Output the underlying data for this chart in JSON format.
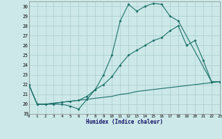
{
  "xlabel": "Humidex (Indice chaleur)",
  "bg_color": "#cce8e8",
  "grid_color": "#aacccc",
  "line_color": "#1a7068",
  "xlim": [
    0,
    23
  ],
  "ylim": [
    19,
    30.5
  ],
  "yticks": [
    19,
    20,
    21,
    22,
    23,
    24,
    25,
    26,
    27,
    28,
    29,
    30
  ],
  "xticks": [
    0,
    1,
    2,
    3,
    4,
    5,
    6,
    7,
    8,
    9,
    10,
    11,
    12,
    13,
    14,
    15,
    16,
    17,
    18,
    19,
    20,
    21,
    22,
    23
  ],
  "curve1_x": [
    0,
    1,
    2,
    3,
    4,
    5,
    6,
    7,
    8,
    9,
    10,
    11,
    12,
    13,
    14,
    15,
    16,
    17,
    18,
    22,
    23
  ],
  "curve1_y": [
    22,
    20,
    20,
    20,
    20,
    19.8,
    19.5,
    20.5,
    21.5,
    23,
    25,
    28.5,
    30.2,
    29.5,
    30.0,
    30.3,
    30.2,
    29.0,
    28.5,
    22.3,
    22.3
  ],
  "curve2_x": [
    0,
    1,
    2,
    3,
    4,
    5,
    6,
    7,
    8,
    9,
    10,
    11,
    12,
    13,
    14,
    15,
    16,
    17,
    18,
    19,
    20,
    21,
    22,
    23
  ],
  "curve2_y": [
    22,
    20,
    20.0,
    20.1,
    20.2,
    20.3,
    20.4,
    20.5,
    20.6,
    20.7,
    20.8,
    21.0,
    21.1,
    21.3,
    21.4,
    21.5,
    21.6,
    21.7,
    21.8,
    21.9,
    22.0,
    22.1,
    22.2,
    22.3
  ],
  "curve3_x": [
    0,
    1,
    2,
    3,
    4,
    5,
    6,
    7,
    8,
    9,
    10,
    11,
    12,
    13,
    14,
    15,
    16,
    17,
    18,
    19,
    20,
    21,
    22,
    23
  ],
  "curve3_y": [
    22,
    20,
    20.0,
    20.1,
    20.2,
    20.3,
    20.4,
    20.8,
    21.5,
    22.0,
    22.8,
    24.0,
    25.0,
    25.5,
    26.0,
    26.5,
    26.8,
    27.5,
    28.0,
    26.0,
    26.5,
    24.5,
    22.3,
    22.3
  ]
}
